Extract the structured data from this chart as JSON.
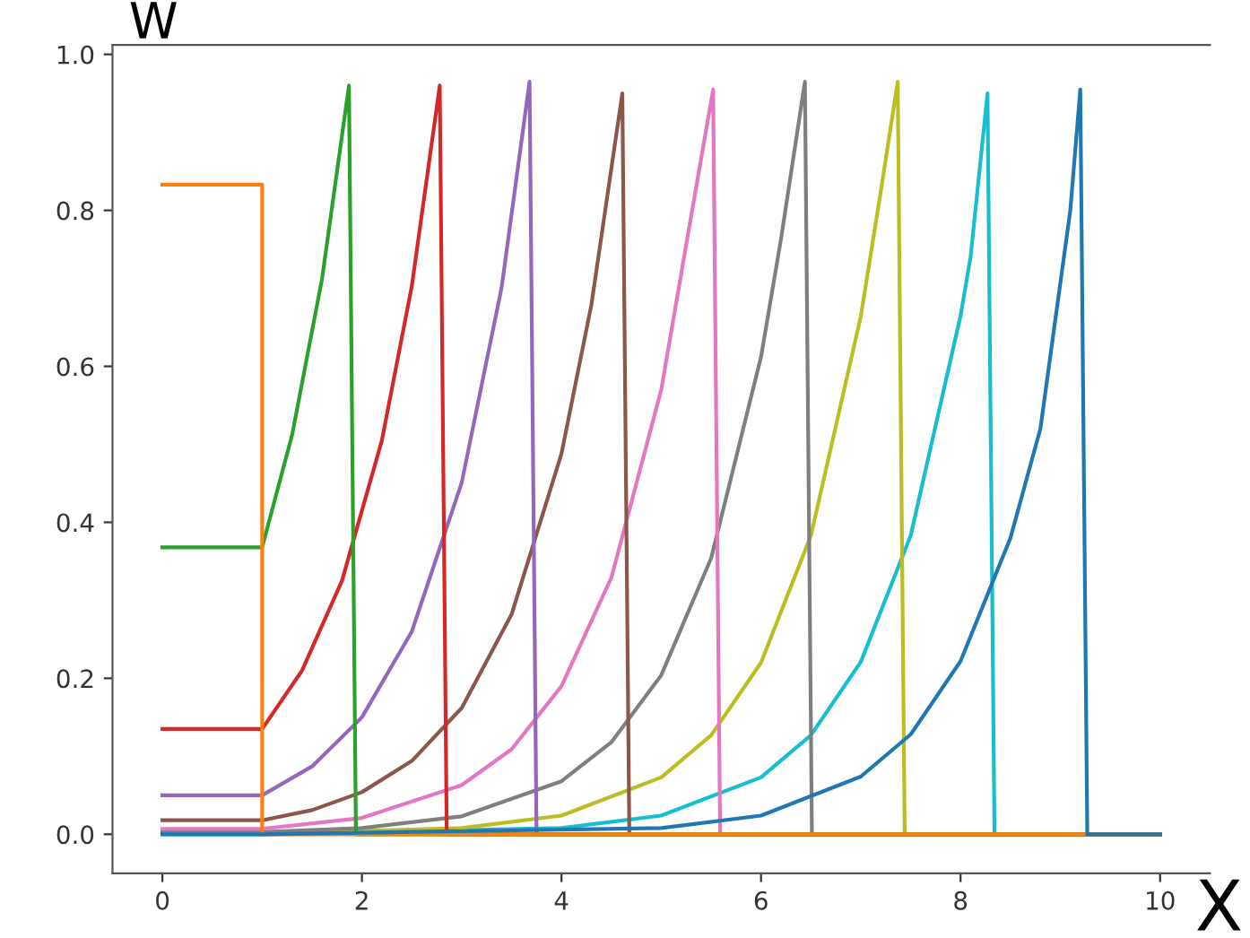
{
  "chart_data": {
    "type": "line",
    "xlabel": "X",
    "ylabel": "W",
    "grid": false,
    "marker": "none",
    "line_style": "solid",
    "xlim": [
      -0.5,
      10.5
    ],
    "ylim": [
      -0.05,
      1.012
    ],
    "xticks": [
      0,
      2,
      4,
      6,
      8,
      10
    ],
    "yticks": [
      {
        "value": 0,
        "label": "0.0"
      },
      {
        "value": 0.2,
        "label": "0.2"
      },
      {
        "value": 0.4,
        "label": "0.4"
      },
      {
        "value": 0.6,
        "label": "0.6"
      },
      {
        "value": 0.8,
        "label": "0.8"
      },
      {
        "value": 1.0,
        "label": "1.0"
      }
    ],
    "series": [
      {
        "color": "#1f77b4",
        "x": [
          0,
          1,
          5,
          6,
          7,
          7.5,
          8,
          8.5,
          8.8,
          9.1,
          9.2,
          9.27,
          10
        ],
        "values": [
          0,
          0,
          0.008,
          0.024,
          0.074,
          0.128,
          0.222,
          0.38,
          0.52,
          0.8,
          0.955,
          0,
          0
        ]
      },
      {
        "color": "#ff7f0e",
        "x": [
          0,
          1,
          1,
          10
        ],
        "values": [
          0.833,
          0.833,
          0,
          0
        ]
      },
      {
        "color": "#2ca02c",
        "x": [
          0,
          1,
          1.3,
          1.6,
          1.87,
          1.94,
          10
        ],
        "values": [
          0.368,
          0.368,
          0.512,
          0.712,
          0.96,
          0,
          0
        ]
      },
      {
        "color": "#d62728",
        "x": [
          0,
          1,
          1.4,
          1.8,
          2.2,
          2.5,
          2.78,
          2.85,
          10
        ],
        "values": [
          0.135,
          0.135,
          0.21,
          0.325,
          0.505,
          0.703,
          0.96,
          0,
          0
        ]
      },
      {
        "color": "#9467bd",
        "x": [
          0,
          1,
          1.5,
          2,
          2.5,
          3,
          3.4,
          3.68,
          3.75,
          10
        ],
        "values": [
          0.05,
          0.05,
          0.087,
          0.15,
          0.26,
          0.451,
          0.701,
          0.965,
          0,
          0
        ]
      },
      {
        "color": "#8c564b",
        "x": [
          0,
          1,
          1.5,
          2,
          2.5,
          3,
          3.5,
          4,
          4.3,
          4.61,
          4.68,
          10
        ],
        "values": [
          0.018,
          0.018,
          0.031,
          0.054,
          0.094,
          0.162,
          0.282,
          0.488,
          0.679,
          0.95,
          0,
          0
        ]
      },
      {
        "color": "#e377c2",
        "x": [
          0,
          1,
          2,
          3,
          3.5,
          4,
          4.5,
          5,
          5.3,
          5.52,
          5.59,
          10
        ],
        "values": [
          0.007,
          0.007,
          0.021,
          0.063,
          0.109,
          0.19,
          0.329,
          0.57,
          0.793,
          0.955,
          0,
          0
        ]
      },
      {
        "color": "#7f7f7f",
        "x": [
          0,
          1,
          2,
          3,
          4,
          4.5,
          5,
          5.5,
          6,
          6.2,
          6.44,
          6.51,
          10
        ],
        "values": [
          0.003,
          0.003,
          0.008,
          0.023,
          0.068,
          0.118,
          0.204,
          0.354,
          0.612,
          0.763,
          0.965,
          0,
          0
        ]
      },
      {
        "color": "#bcbd22",
        "x": [
          0,
          1,
          3,
          4,
          5,
          5.5,
          6,
          6.5,
          7,
          7.2,
          7.37,
          7.44,
          10
        ],
        "values": [
          0.001,
          0.001,
          0.008,
          0.024,
          0.073,
          0.127,
          0.22,
          0.383,
          0.664,
          0.824,
          0.965,
          0,
          0
        ]
      },
      {
        "color": "#17becf",
        "x": [
          0,
          1,
          4,
          5,
          6,
          6.5,
          7,
          7.5,
          8,
          8.1,
          8.27,
          8.34,
          10
        ],
        "values": [
          0,
          0,
          0.008,
          0.024,
          0.073,
          0.127,
          0.221,
          0.383,
          0.665,
          0.74,
          0.95,
          0,
          0
        ]
      }
    ]
  }
}
